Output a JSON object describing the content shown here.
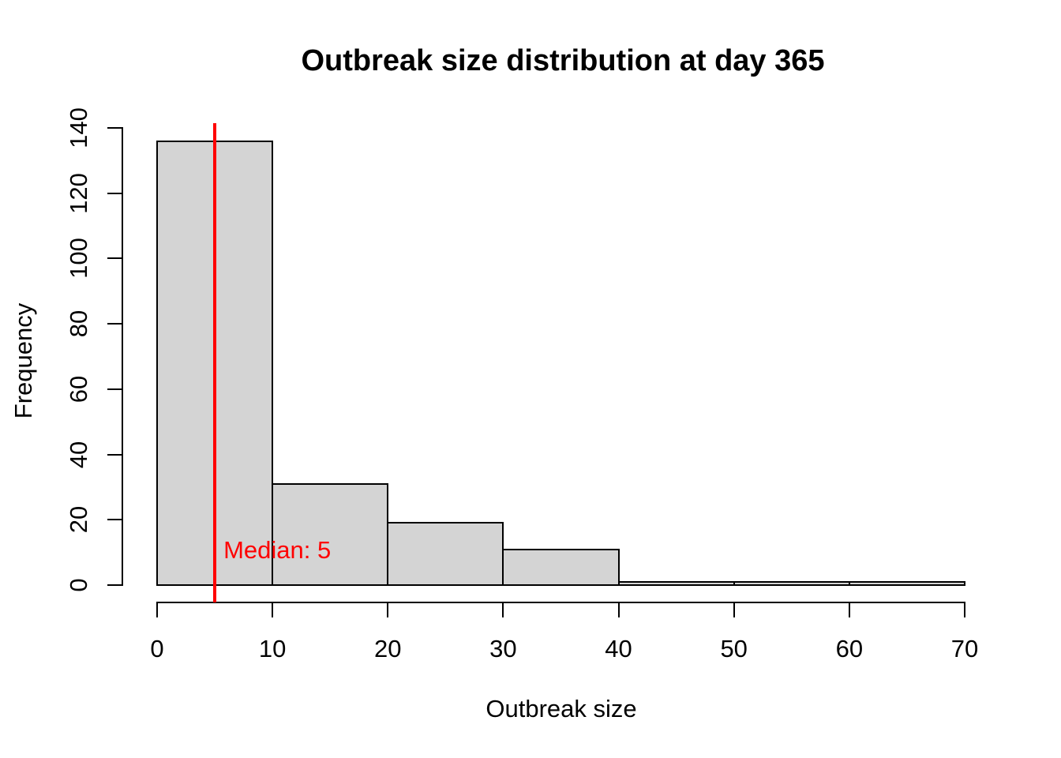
{
  "chart_data": {
    "type": "bar",
    "subtype": "histogram",
    "title": "Outbreak size distribution at day 365",
    "xlabel": "Outbreak size",
    "ylabel": "Frequency",
    "bin_edges": [
      0,
      10,
      20,
      30,
      40,
      50,
      60,
      70
    ],
    "counts": [
      136,
      31,
      19,
      11,
      1,
      1,
      1
    ],
    "x_ticks": [
      0,
      10,
      20,
      30,
      40,
      50,
      60,
      70
    ],
    "y_ticks": [
      0,
      20,
      40,
      60,
      80,
      100,
      120,
      140
    ],
    "xlim": [
      0,
      70
    ],
    "ylim": [
      0,
      140
    ],
    "grid": false,
    "legend": null,
    "bar_fill_color": "#d4d4d4",
    "bar_border_color": "#000000",
    "axis_color": "#000000",
    "background_color": "#ffffff",
    "median_line": {
      "value": 5,
      "label": "Median: 5",
      "color": "#ff0000"
    }
  }
}
